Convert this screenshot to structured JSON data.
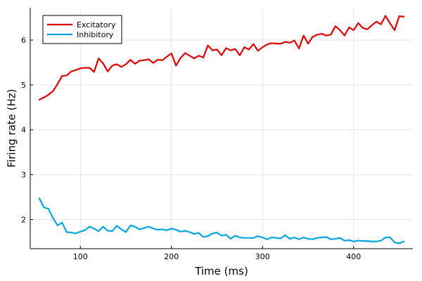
{
  "chart_data": {
    "type": "line",
    "title": "",
    "xlabel": "Time (ms)",
    "ylabel": "Firing rate (Hz)",
    "xlim": [
      45,
      465
    ],
    "ylim": [
      1.35,
      6.72
    ],
    "xticks": [
      100,
      200,
      300,
      400
    ],
    "yticks": [
      2,
      3,
      4,
      5,
      6
    ],
    "grid": true,
    "legend_position": "top-left",
    "series": [
      {
        "name": "Excitatory",
        "color": "#e00000",
        "x": [
          55,
          60,
          65,
          70,
          75,
          80,
          85,
          90,
          95,
          100,
          105,
          110,
          115,
          120,
          125,
          130,
          135,
          140,
          145,
          150,
          155,
          160,
          165,
          170,
          175,
          180,
          185,
          190,
          195,
          200,
          205,
          210,
          215,
          220,
          225,
          230,
          235,
          240,
          245,
          250,
          255,
          260,
          265,
          270,
          275,
          280,
          285,
          290,
          295,
          300,
          305,
          310,
          315,
          320,
          325,
          330,
          335,
          340,
          345,
          350,
          355,
          360,
          365,
          370,
          375,
          380,
          385,
          390,
          395,
          400,
          405,
          410,
          415,
          420,
          425,
          430,
          435,
          440,
          445,
          450,
          455
        ],
        "y": [
          4.67,
          4.72,
          4.78,
          4.86,
          5.02,
          5.2,
          5.21,
          5.3,
          5.33,
          5.37,
          5.38,
          5.38,
          5.29,
          5.59,
          5.48,
          5.3,
          5.43,
          5.46,
          5.4,
          5.46,
          5.56,
          5.47,
          5.54,
          5.55,
          5.57,
          5.49,
          5.56,
          5.55,
          5.63,
          5.7,
          5.43,
          5.6,
          5.71,
          5.65,
          5.59,
          5.65,
          5.61,
          5.88,
          5.77,
          5.79,
          5.66,
          5.82,
          5.77,
          5.8,
          5.66,
          5.84,
          5.79,
          5.91,
          5.76,
          5.84,
          5.9,
          5.93,
          5.92,
          5.92,
          5.96,
          5.94,
          5.99,
          5.81,
          6.1,
          5.92,
          6.07,
          6.12,
          6.14,
          6.1,
          6.12,
          6.31,
          6.22,
          6.1,
          6.28,
          6.22,
          6.38,
          6.27,
          6.24,
          6.33,
          6.41,
          6.35,
          6.54,
          6.37,
          6.22,
          6.53,
          6.52
        ]
      },
      {
        "name": "Inhibitory",
        "color": "#00a5e0",
        "x": [
          55,
          60,
          65,
          70,
          75,
          80,
          85,
          90,
          95,
          100,
          105,
          110,
          115,
          120,
          125,
          130,
          135,
          140,
          145,
          150,
          155,
          160,
          165,
          170,
          175,
          180,
          185,
          190,
          195,
          200,
          205,
          210,
          215,
          220,
          225,
          230,
          235,
          240,
          245,
          250,
          255,
          260,
          265,
          270,
          275,
          280,
          285,
          290,
          295,
          300,
          305,
          310,
          315,
          320,
          325,
          330,
          335,
          340,
          345,
          350,
          355,
          360,
          365,
          370,
          375,
          380,
          385,
          390,
          395,
          400,
          405,
          410,
          415,
          420,
          425,
          430,
          435,
          440,
          445,
          450,
          455
        ],
        "y": [
          2.47,
          2.27,
          2.24,
          2.03,
          1.87,
          1.93,
          1.72,
          1.71,
          1.69,
          1.73,
          1.76,
          1.84,
          1.8,
          1.74,
          1.84,
          1.75,
          1.74,
          1.86,
          1.78,
          1.72,
          1.87,
          1.84,
          1.78,
          1.81,
          1.84,
          1.8,
          1.77,
          1.78,
          1.76,
          1.8,
          1.77,
          1.73,
          1.75,
          1.72,
          1.68,
          1.7,
          1.61,
          1.63,
          1.69,
          1.71,
          1.64,
          1.66,
          1.57,
          1.64,
          1.6,
          1.59,
          1.59,
          1.59,
          1.63,
          1.6,
          1.56,
          1.6,
          1.59,
          1.58,
          1.65,
          1.57,
          1.6,
          1.56,
          1.6,
          1.57,
          1.56,
          1.59,
          1.6,
          1.61,
          1.56,
          1.57,
          1.59,
          1.53,
          1.54,
          1.51,
          1.53,
          1.52,
          1.52,
          1.51,
          1.51,
          1.53,
          1.6,
          1.6,
          1.49,
          1.47,
          1.51
        ]
      }
    ]
  }
}
